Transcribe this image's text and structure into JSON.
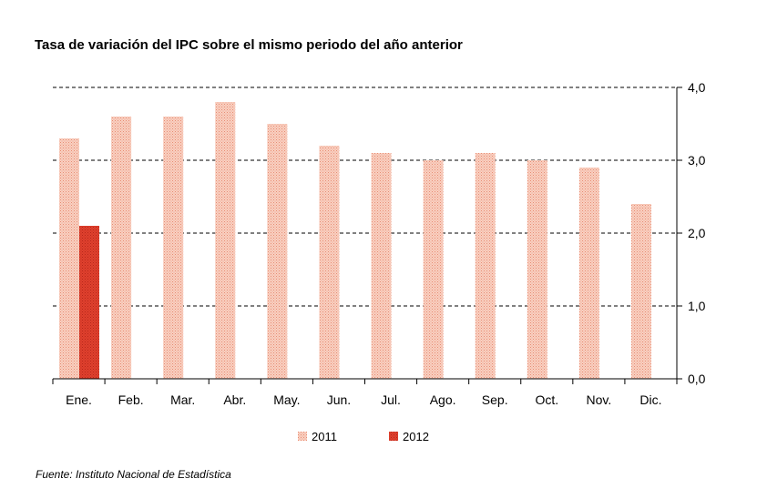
{
  "chart_data": {
    "type": "bar",
    "title": "Tasa de variación del IPC sobre el mismo periodo del año anterior",
    "categories": [
      "Ene.",
      "Feb.",
      "Mar.",
      "Abr.",
      "May.",
      "Jun.",
      "Jul.",
      "Ago.",
      "Sep.",
      "Oct.",
      "Nov.",
      "Dic."
    ],
    "series": [
      {
        "name": "2011",
        "color": "#f4b8a4",
        "values": [
          3.3,
          3.6,
          3.6,
          3.8,
          3.5,
          3.2,
          3.1,
          3.0,
          3.1,
          3.0,
          2.9,
          2.4
        ]
      },
      {
        "name": "2012",
        "color": "#d83a2a",
        "values": [
          2.1,
          null,
          null,
          null,
          null,
          null,
          null,
          null,
          null,
          null,
          null,
          null
        ]
      }
    ],
    "ylim": [
      0,
      4
    ],
    "yticks": [
      "0,0",
      "1,0",
      "2,0",
      "3,0",
      "4,0"
    ],
    "ytick_values": [
      0,
      1,
      2,
      3,
      4
    ],
    "y_axis_side": "right",
    "grid": "horizontal dashed",
    "legend_position": "bottom"
  },
  "source": "Fuente: Instituto Nacional de Estadística"
}
